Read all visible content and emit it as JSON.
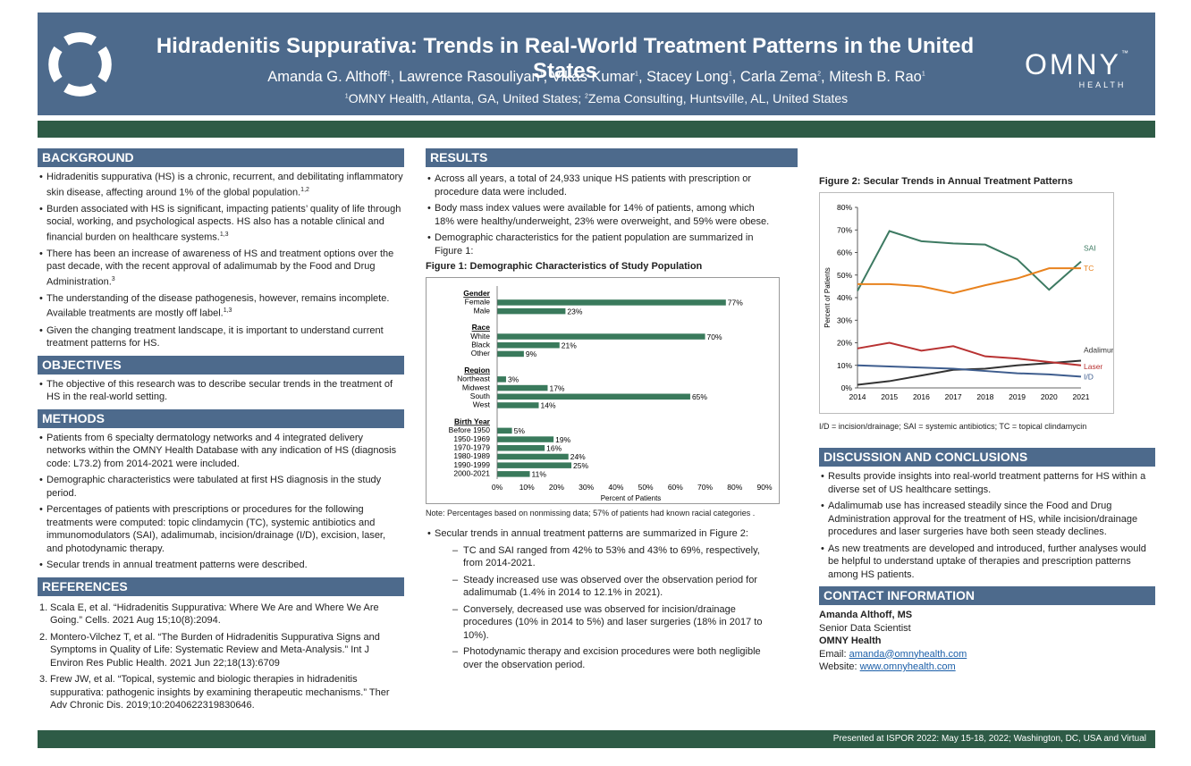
{
  "header": {
    "title": "Hidradenitis Suppurativa: Trends in Real-World Treatment Patterns in the United States",
    "authors": [
      {
        "name": "Amanda G. Althoff",
        "sup": "1"
      },
      {
        "name": "Lawrence Rasouliyan",
        "sup": "1"
      },
      {
        "name": "Vikas Kumar",
        "sup": "1"
      },
      {
        "name": "Stacey Long",
        "sup": "1"
      },
      {
        "name": "Carla Zema",
        "sup": "2"
      },
      {
        "name": "Mitesh B. Rao",
        "sup": "1"
      }
    ],
    "affiliations": [
      {
        "sup": "1",
        "text": "OMNY Health, Atlanta, GA, United States; "
      },
      {
        "sup": "2",
        "text": "Zema Consulting, Huntsville, AL, United States"
      }
    ],
    "logo_word": "OMNY",
    "logo_tm": "™",
    "logo_sub": "HEALTH",
    "colors": {
      "header_blue": "#4d6a8c",
      "band_green": "#2e5b46",
      "bar_green": "#3a7a5c"
    }
  },
  "background": {
    "heading": "BACKGROUND",
    "items": [
      {
        "text": "Hidradenitis suppurativa (HS) is a chronic, recurrent, and debilitating inflammatory skin disease, affecting around 1% of the global population.",
        "sup": "1,2"
      },
      {
        "text": "Burden associated with HS is significant, impacting patients’ quality of life through social, working, and psychological aspects. HS also has a notable clinical and financial burden on healthcare systems.",
        "sup": "1,3"
      },
      {
        "text": "There has been an increase of awareness of HS and treatment options over the past decade, with the recent approval of adalimumab by the Food and Drug Administration.",
        "sup": "3"
      },
      {
        "text": "The understanding of the disease pathogenesis, however, remains incomplete. Available treatments are mostly off label.",
        "sup": "1,3"
      },
      {
        "text": "Given the changing treatment landscape, it is important to understand current treatment patterns for HS.",
        "sup": ""
      }
    ]
  },
  "objectives": {
    "heading": "OBJECTIVES",
    "items": [
      "The objective of this research was to describe secular trends in the treatment of HS in the real-world setting."
    ]
  },
  "methods": {
    "heading": "METHODS",
    "items": [
      "Patients from 6 specialty dermatology networks and 4 integrated delivery networks within the OMNY Health Database with any indication of HS (diagnosis code: L73.2) from 2014-2021 were included.",
      "Demographic characteristics were tabulated at first HS diagnosis in the study period.",
      "Percentages of patients with prescriptions or procedures for the following treatments were computed: topic clindamycin (TC), systemic antibiotics and immunomodulators (SAI), adalimumab, incision/drainage (I/D), excision, laser, and photodynamic therapy.",
      "Secular trends in annual treatment patterns were described."
    ]
  },
  "references": {
    "heading": "REFERENCES",
    "items": [
      {
        "num": "1.",
        "text": "Scala E, et al. “Hidradenitis Suppurativa: Where We Are and Where We Are Going.” Cells. 2021 Aug 15;10(8):2094."
      },
      {
        "num": "2.",
        "text": "Montero-Vilchez T, et al. “The Burden of Hidradenitis Suppurativa Signs and Symptoms in Quality of Life: Systematic Review and Meta-Analysis.” Int J Environ Res Public Health. 2021 Jun 22;18(13):6709"
      },
      {
        "num": "3.",
        "text": "Frew JW, et al. “Topical, systemic and biologic therapies in hidradenitis suppurativa: pathogenic insights by examining therapeutic mechanisms.” Ther Adv Chronic Dis. 2019;10:2040622319830646."
      }
    ]
  },
  "results": {
    "heading": "RESULTS",
    "items": [
      "Across all years, a total of 24,933 unique HS patients with prescription or procedure data were included.",
      "Body mass index values were available for 14% of patients, among which 18% were healthy/underweight, 23% were overweight, and 59% were obese.",
      "Demographic characteristics for the patient population are summarized in Figure 1:"
    ],
    "fig1_title": "Figure 1: Demographic Characteristics of Study Population",
    "fig1_note": "Note: Percentages based on nonmissing data; 57% of patients had known racial categories .",
    "trend_intro": "Secular trends in annual treatment patterns are summarized in Figure 2:",
    "sub_items": [
      "TC and SAI ranged from 42% to 53% and 43% to 69%, respectively, from 2014-2021.",
      "Steady increased use was observed over the observation period for adalimumab (1.4% in 2014 to 12.1% in 2021).",
      "Conversely, decreased use was observed for incision/drainage procedures (10% in 2014 to 5%) and laser surgeries (18% in 2017 to 10%).",
      "Photodynamic therapy and excision procedures were both negligible over the observation period."
    ]
  },
  "figure2": {
    "title": "Figure 2: Secular Trends in Annual Treatment Patterns",
    "note": "I/D = incision/drainage; SAI = systemic antibiotics; TC = topical clindamycin"
  },
  "discussion": {
    "heading": "DISCUSSION AND CONCLUSIONS",
    "items": [
      "Results provide insights into real-world treatment patterns for HS within a diverse set of US healthcare settings.",
      "Adalimumab use has increased steadily since the Food and Drug Administration approval for the treatment of HS, while incision/drainage procedures and laser surgeries have both seen steady declines.",
      "As new treatments are developed and introduced, further analyses would be helpful to understand uptake of therapies and prescription patterns among HS patients."
    ]
  },
  "contact": {
    "heading": "CONTACT INFORMATION",
    "name": "Amanda Althoff, MS",
    "role": "Senior Data Scientist",
    "org": "OMNY Health",
    "email_label": "Email: ",
    "email": "amanda@omnyhealth.com",
    "website_label": "Website: ",
    "website": "www.omnyhealth.com"
  },
  "footer": {
    "text": "Presented at ISPOR 2022: May 15-18, 2022; Washington, DC, USA and Virtual"
  },
  "chart_data": [
    {
      "type": "bar",
      "orientation": "horizontal",
      "title": "Figure 1: Demographic Characteristics of Study Population",
      "xlabel": "Percent of Patients",
      "xlim": [
        0,
        90
      ],
      "xticks": [
        "0%",
        "10%",
        "20%",
        "30%",
        "40%",
        "50%",
        "60%",
        "70%",
        "80%",
        "90%"
      ],
      "groups": [
        {
          "name": "Gender",
          "categories": [
            "Female",
            "Male"
          ],
          "values": [
            77,
            23
          ]
        },
        {
          "name": "Race",
          "categories": [
            "White",
            "Black",
            "Other"
          ],
          "values": [
            70,
            21,
            9
          ]
        },
        {
          "name": "Region",
          "categories": [
            "Northeast",
            "Midwest",
            "South",
            "West"
          ],
          "values": [
            3,
            17,
            65,
            14
          ]
        },
        {
          "name": "Birth Year",
          "categories": [
            "Before 1950",
            "1950-1969",
            "1970-1979",
            "1980-1989",
            "1990-1999",
            "2000-2021"
          ],
          "values": [
            5,
            19,
            16,
            24,
            25,
            11
          ]
        }
      ],
      "color": "#3a7a5c"
    },
    {
      "type": "line",
      "title": "Figure 2: Secular Trends in Annual Treatment Patterns",
      "ylabel": "Percent of Patients",
      "x": [
        2014,
        2015,
        2016,
        2017,
        2018,
        2019,
        2020,
        2021
      ],
      "ylim": [
        0,
        80
      ],
      "yticks": [
        "0%",
        "10%",
        "20%",
        "30%",
        "40%",
        "50%",
        "60%",
        "70%",
        "80%"
      ],
      "series": [
        {
          "name": "SAI",
          "color": "#3d7a62",
          "values": [
            43,
            69.5,
            65,
            64,
            63.5,
            57,
            43.5,
            56
          ]
        },
        {
          "name": "TC",
          "color": "#e8821e",
          "values": [
            46,
            46,
            45,
            42,
            45.5,
            48.5,
            53,
            53
          ]
        },
        {
          "name": "Adalimumab",
          "color": "#333333",
          "values": [
            1.4,
            3,
            5.5,
            8,
            8.5,
            10,
            11,
            12.1
          ]
        },
        {
          "name": "Laser",
          "color": "#b83232",
          "values": [
            17.5,
            20,
            16.5,
            18.5,
            14,
            13,
            11.5,
            10
          ]
        },
        {
          "name": "I/D",
          "color": "#3e5d8e",
          "values": [
            10,
            9.5,
            9,
            8.5,
            7.5,
            6.5,
            6,
            5
          ]
        }
      ]
    }
  ]
}
